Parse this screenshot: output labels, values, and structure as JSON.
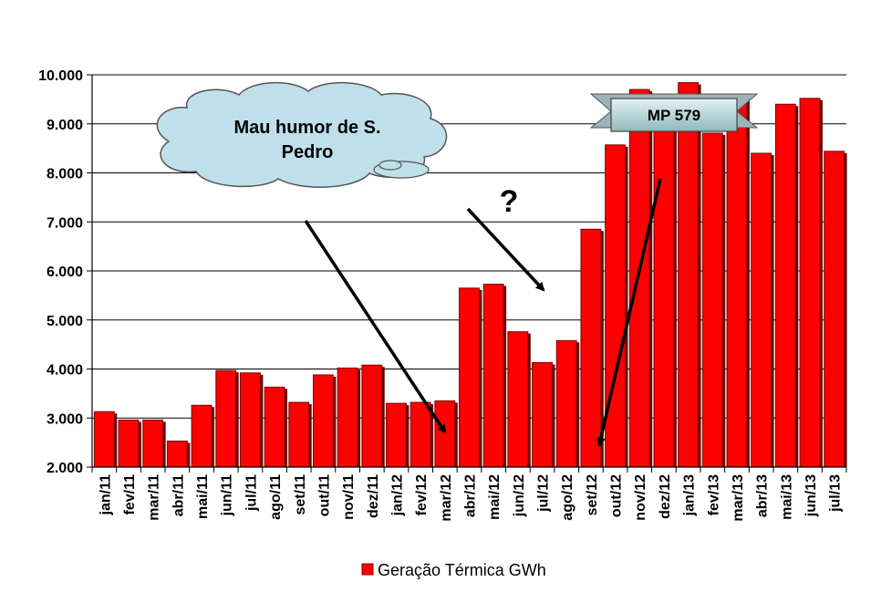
{
  "chart_data": {
    "type": "bar",
    "categories": [
      "jan/11",
      "fev/11",
      "mar/11",
      "abr/11",
      "mai/11",
      "jun/11",
      "jul/11",
      "ago/11",
      "set/11",
      "out/11",
      "nov/11",
      "dez/11",
      "jan/12",
      "fev/12",
      "mar/12",
      "abr/12",
      "mai/12",
      "jun/12",
      "jul/12",
      "ago/12",
      "set/12",
      "out/12",
      "nov/12",
      "dez/12",
      "jan/13",
      "fev/13",
      "mar/13",
      "abr/13",
      "mai/13",
      "jun/13",
      "jul/13"
    ],
    "series": [
      {
        "name": "Geração Térmica GWh",
        "color": "#ff0000",
        "values": [
          3130,
          2960,
          2960,
          2530,
          3260,
          3970,
          3920,
          3630,
          3320,
          3880,
          4020,
          4080,
          3300,
          3320,
          3350,
          5650,
          5730,
          4760,
          4130,
          4580,
          6850,
          8570,
          9700,
          9560,
          9840,
          8810,
          9600,
          8400,
          9400,
          9520,
          8440
        ]
      }
    ],
    "yticks": [
      "2.000",
      "3.000",
      "4.000",
      "5.000",
      "6.000",
      "7.000",
      "8.000",
      "9.000",
      "10.000"
    ],
    "ylim": [
      2000,
      10000
    ],
    "grid": true,
    "legend": "bottom",
    "annotations": {
      "cloud_text_line1": "Mau humor de S.",
      "cloud_text_line2": "Pedro",
      "question_mark": "?",
      "banner_text": "MP 579"
    }
  }
}
